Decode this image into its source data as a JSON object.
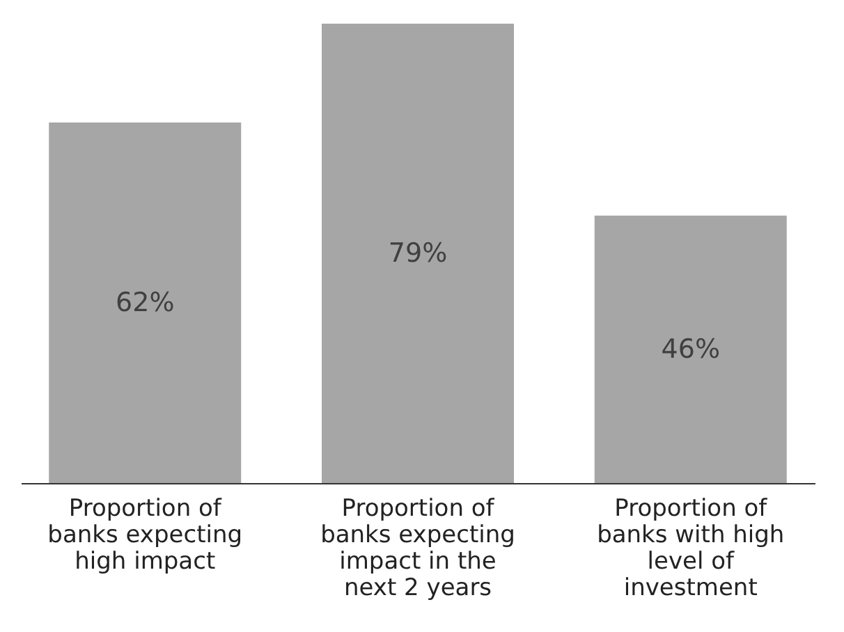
{
  "chart_data": {
    "type": "bar",
    "categories": [
      "Proportion of banks expecting high impact",
      "Proportion of banks expecting impact in the next 2 years",
      "Proportion of banks with high level of investment"
    ],
    "values": [
      62,
      79,
      46
    ],
    "color": "#a6a6a6",
    "data_labels": true,
    "value_labels": [
      "62%",
      "79%",
      "46%"
    ],
    "tick_labels": "x"
  }
}
